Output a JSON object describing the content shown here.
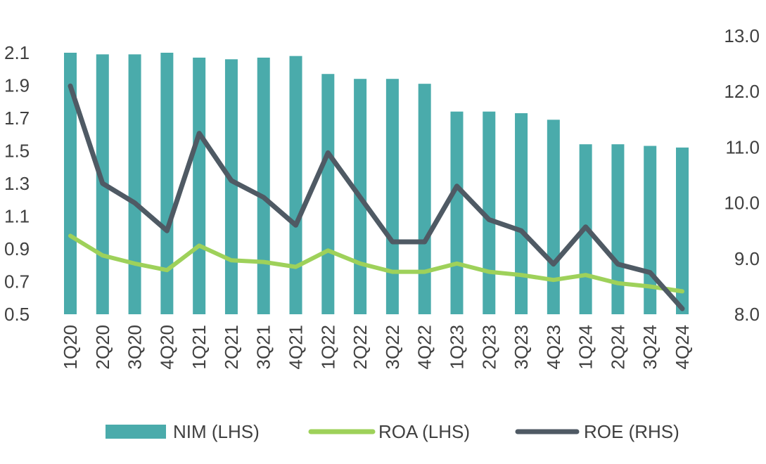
{
  "chart_data": {
    "type": "bar",
    "categories": [
      "1Q20",
      "2Q20",
      "3Q20",
      "4Q20",
      "1Q21",
      "2Q21",
      "3Q21",
      "4Q21",
      "1Q22",
      "2Q22",
      "3Q22",
      "4Q22",
      "1Q23",
      "2Q23",
      "3Q23",
      "4Q23",
      "1Q24",
      "2Q24",
      "3Q24",
      "4Q24"
    ],
    "series": [
      {
        "name": "NIM (LHS)",
        "type": "bar",
        "axis": "left",
        "color": "#4aabab",
        "values": [
          2.1,
          2.09,
          2.09,
          2.1,
          2.07,
          2.06,
          2.07,
          2.08,
          1.97,
          1.94,
          1.94,
          1.91,
          1.74,
          1.74,
          1.73,
          1.69,
          1.54,
          1.54,
          1.53,
          1.52
        ]
      },
      {
        "name": "ROA (LHS)",
        "type": "line",
        "axis": "left",
        "color": "#9ed15a",
        "values": [
          0.98,
          0.86,
          0.81,
          0.77,
          0.92,
          0.83,
          0.82,
          0.79,
          0.89,
          0.81,
          0.76,
          0.76,
          0.81,
          0.76,
          0.74,
          0.71,
          0.74,
          0.69,
          0.67,
          0.64
        ]
      },
      {
        "name": "ROE (RHS)",
        "type": "line",
        "axis": "right",
        "color": "#4f5a64",
        "values": [
          12.1,
          10.35,
          10.0,
          9.5,
          11.25,
          10.4,
          10.1,
          9.6,
          10.9,
          10.1,
          9.3,
          9.3,
          10.3,
          9.7,
          9.5,
          8.9,
          9.57,
          8.9,
          8.75,
          8.1
        ]
      }
    ],
    "y_left": {
      "min": 0.5,
      "max": 2.1,
      "ticks": [
        "0.5",
        "0.7",
        "0.9",
        "1.1",
        "1.3",
        "1.5",
        "1.7",
        "1.9",
        "2.1"
      ]
    },
    "y_right": {
      "min": 8.0,
      "max": 13.0,
      "ticks": [
        "8.0",
        "9.0",
        "10.0",
        "11.0",
        "12.0",
        "13.0"
      ]
    },
    "legend": {
      "position": "bottom",
      "items": [
        "NIM (LHS)",
        "ROA (LHS)",
        "ROE (RHS)"
      ]
    },
    "grid": false,
    "title": "",
    "xlabel": "",
    "ylabel": ""
  }
}
